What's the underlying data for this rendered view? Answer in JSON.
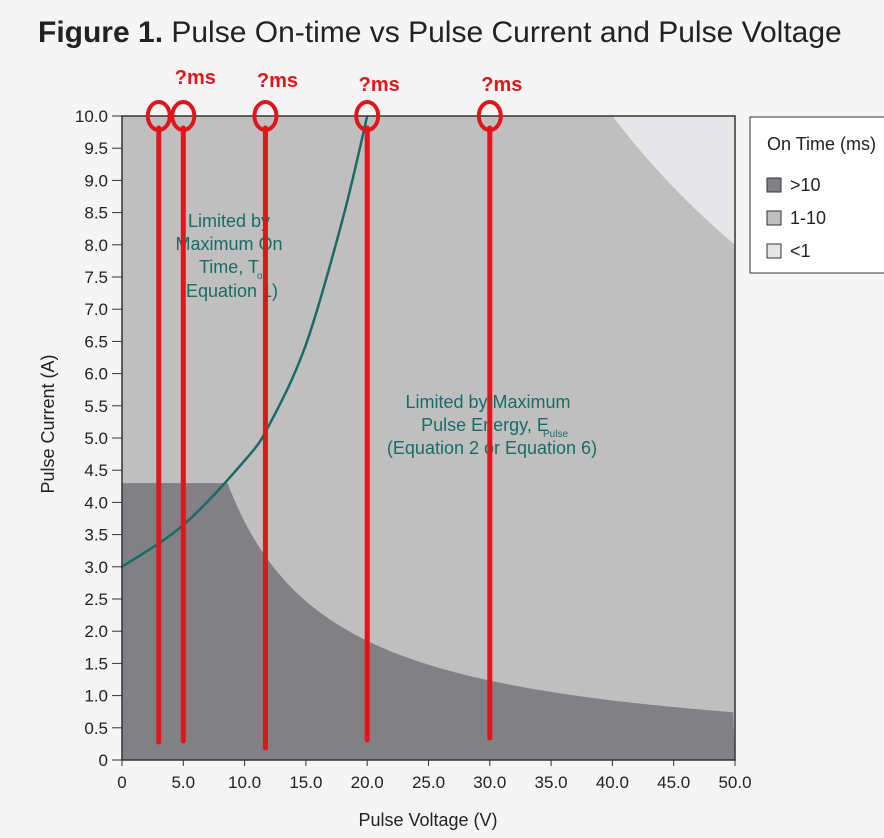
{
  "chart_data": {
    "type": "area",
    "title_bold": "Figure 1.",
    "title_rest": " Pulse On-time vs Pulse Current and Pulse Voltage",
    "xlabel": "Pulse Voltage (V)",
    "ylabel": "Pulse Current (A)",
    "xlim": [
      0,
      50
    ],
    "ylim": [
      0,
      10
    ],
    "x_ticks": [
      "0",
      "5.0",
      "10.0",
      "15.0",
      "20.0",
      "25.0",
      "30.0",
      "35.0",
      "40.0",
      "45.0",
      "50.0"
    ],
    "y_ticks": [
      "0",
      "0.5",
      "1.0",
      "1.5",
      "2.0",
      "2.5",
      "3.0",
      "3.5",
      "4.0",
      "4.5",
      "5.0",
      "5.5",
      "6.0",
      "6.5",
      "7.0",
      "7.5",
      "8.0",
      "8.5",
      "9.0",
      "9.5",
      "10.0"
    ],
    "grid": false,
    "legend": {
      "title": "On Time (ms)",
      "position": "right",
      "entries": [
        {
          "label": ">10",
          "color": "#818185"
        },
        {
          "label": "1-10",
          "color": "#bfbfc0"
        },
        {
          "label": "<1",
          "color": "#e6e6e8"
        }
      ]
    },
    "regions": [
      {
        "name": ">10",
        "current_cap": 4.3,
        "energy_boundary_VxI": 37.0
      },
      {
        "name": "1-10",
        "energy_boundary_VxI": 400.0
      },
      {
        "name": "<1"
      }
    ],
    "boundary_curve": {
      "color": "#1a6b66",
      "points": [
        [
          0,
          3.0
        ],
        [
          5,
          3.65
        ],
        [
          10,
          4.65
        ],
        [
          12,
          5.2
        ],
        [
          15,
          6.45
        ],
        [
          18,
          8.4
        ],
        [
          20,
          10.0
        ]
      ]
    },
    "annotations": [
      {
        "lines": [
          "Limited by",
          "Maximum On",
          "Time, T"
        ],
        "subscript": "on",
        "last_line": "(Equation 1)"
      },
      {
        "lines": [
          "Limited by Maximum",
          "Pulse Energy, E"
        ],
        "subscript": "Pulse",
        "last_line": "(Equation 2 or Equation 6)"
      }
    ],
    "markers": [
      {
        "x": 3,
        "label": ""
      },
      {
        "x": 5,
        "label": "?ms"
      },
      {
        "x": 11.7,
        "label": "?ms"
      },
      {
        "x": 20,
        "label": "?ms"
      },
      {
        "x": 30,
        "label": "?ms"
      }
    ],
    "colors": {
      "dark": "#818185",
      "mid": "#bfbfc0",
      "light": "#e6e6e8",
      "curve": "#1a6b66",
      "marker": "#e0161c",
      "annotation": "#1a6b66"
    }
  }
}
